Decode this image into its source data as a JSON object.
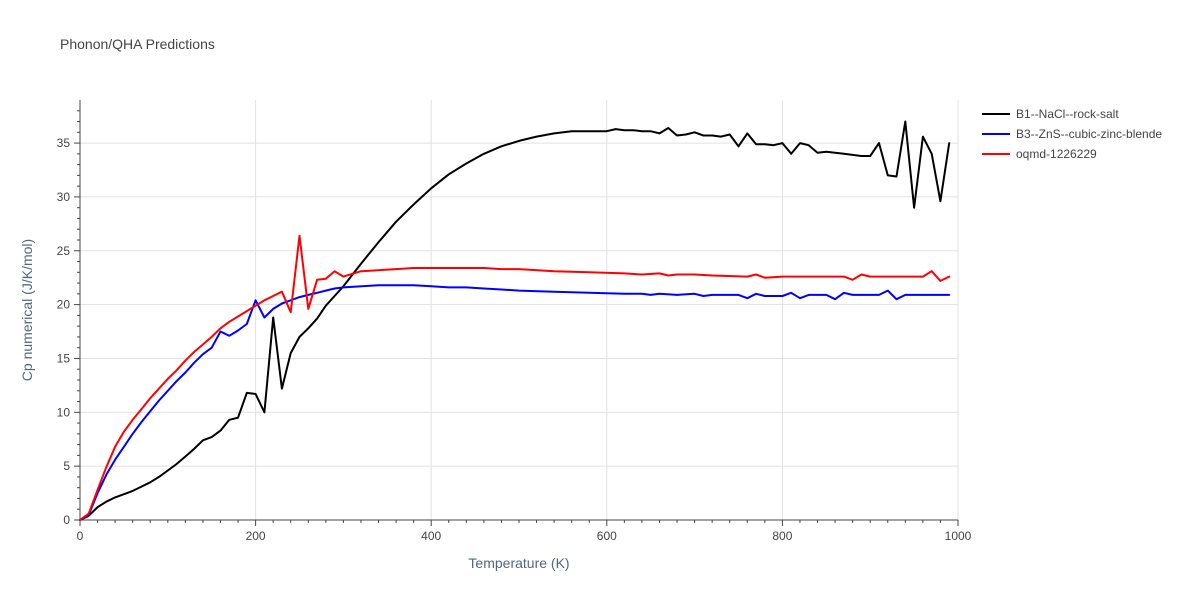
{
  "chart_data": {
    "type": "line",
    "title": "Phonon/QHA Predictions",
    "xlabel": "Temperature (K)",
    "ylabel": "Cp numerical (J/K/mol)",
    "xlim": [
      0,
      1000
    ],
    "ylim": [
      0,
      39
    ],
    "xticks": [
      0,
      200,
      400,
      600,
      800,
      1000
    ],
    "yticks": [
      0,
      5,
      10,
      15,
      20,
      25,
      30,
      35
    ],
    "grid": true,
    "legend_position": "top-right",
    "series": [
      {
        "name": "B1--NaCl--rock-salt",
        "color": "#000000",
        "x": [
          0,
          10,
          20,
          30,
          40,
          50,
          60,
          70,
          80,
          90,
          100,
          110,
          120,
          130,
          140,
          150,
          160,
          170,
          180,
          190,
          200,
          210,
          220,
          230,
          240,
          250,
          260,
          270,
          280,
          290,
          300,
          320,
          340,
          360,
          380,
          400,
          420,
          440,
          460,
          480,
          500,
          520,
          540,
          560,
          580,
          600,
          610,
          620,
          630,
          640,
          650,
          660,
          670,
          680,
          690,
          700,
          710,
          720,
          730,
          740,
          750,
          760,
          770,
          780,
          790,
          800,
          810,
          820,
          830,
          840,
          850,
          860,
          870,
          880,
          890,
          900,
          910,
          920,
          930,
          940,
          950,
          960,
          970,
          980,
          990
        ],
        "y": [
          0,
          0.4,
          1.2,
          1.7,
          2.1,
          2.4,
          2.7,
          3.1,
          3.5,
          4.0,
          4.6,
          5.2,
          5.9,
          6.6,
          7.4,
          7.7,
          8.3,
          9.3,
          9.5,
          11.8,
          11.7,
          10.0,
          18.8,
          12.2,
          15.5,
          17.0,
          17.8,
          18.7,
          19.9,
          20.8,
          21.7,
          23.8,
          25.8,
          27.7,
          29.3,
          30.8,
          32.1,
          33.1,
          34.0,
          34.7,
          35.2,
          35.6,
          35.9,
          36.1,
          36.1,
          36.1,
          36.3,
          36.2,
          36.2,
          36.1,
          36.1,
          35.9,
          36.4,
          35.7,
          35.8,
          36.0,
          35.7,
          35.7,
          35.6,
          35.8,
          34.7,
          35.9,
          34.9,
          34.9,
          34.8,
          35.0,
          34.0,
          35.0,
          34.8,
          34.1,
          34.2,
          34.1,
          34.0,
          33.9,
          33.8,
          33.8,
          35.0,
          32.0,
          31.9,
          37.0,
          29.0,
          35.6,
          34.0,
          29.6,
          35.0
        ]
      },
      {
        "name": "B3--ZnS--cubic-zinc-blende",
        "color": "#0000ff",
        "x": [
          0,
          10,
          20,
          30,
          40,
          50,
          60,
          70,
          80,
          90,
          100,
          110,
          120,
          130,
          140,
          150,
          160,
          170,
          180,
          190,
          200,
          210,
          220,
          230,
          240,
          250,
          260,
          270,
          280,
          290,
          300,
          340,
          380,
          400,
          420,
          440,
          460,
          480,
          500,
          540,
          580,
          620,
          640,
          650,
          660,
          680,
          700,
          710,
          720,
          740,
          750,
          760,
          770,
          780,
          800,
          810,
          820,
          830,
          850,
          860,
          870,
          880,
          910,
          920,
          930,
          940,
          960,
          990
        ],
        "y": [
          0,
          0.5,
          2.5,
          4.2,
          5.6,
          6.8,
          8.0,
          9.1,
          10.1,
          11.1,
          12.0,
          12.9,
          13.7,
          14.6,
          15.4,
          16.0,
          17.5,
          17.1,
          17.6,
          18.2,
          20.4,
          18.8,
          19.6,
          20.1,
          20.4,
          20.7,
          20.9,
          21.1,
          21.3,
          21.5,
          21.6,
          21.8,
          21.8,
          21.7,
          21.6,
          21.6,
          21.5,
          21.4,
          21.3,
          21.2,
          21.1,
          21.0,
          21.0,
          20.9,
          21.0,
          20.9,
          21.0,
          20.8,
          20.9,
          20.9,
          20.9,
          20.6,
          21.0,
          20.8,
          20.8,
          21.1,
          20.6,
          20.9,
          20.9,
          20.5,
          21.1,
          20.9,
          20.9,
          21.3,
          20.5,
          20.9,
          20.9,
          20.9
        ]
      },
      {
        "name": "oqmd-1226229",
        "color": "#ff0000",
        "x": [
          0,
          10,
          20,
          30,
          40,
          50,
          60,
          70,
          80,
          90,
          100,
          110,
          120,
          130,
          140,
          150,
          160,
          170,
          180,
          190,
          200,
          210,
          220,
          230,
          240,
          250,
          260,
          270,
          280,
          290,
          300,
          320,
          340,
          360,
          380,
          400,
          420,
          440,
          460,
          480,
          500,
          540,
          580,
          620,
          640,
          660,
          670,
          680,
          700,
          720,
          760,
          770,
          780,
          800,
          840,
          860,
          870,
          880,
          890,
          900,
          960,
          970,
          980,
          990
        ],
        "y": [
          0,
          0.6,
          2.8,
          4.9,
          6.8,
          8.2,
          9.3,
          10.3,
          11.3,
          12.2,
          13.1,
          13.9,
          14.8,
          15.6,
          16.3,
          17.0,
          17.8,
          18.4,
          18.9,
          19.4,
          19.9,
          20.4,
          20.8,
          21.2,
          19.3,
          26.4,
          19.6,
          22.3,
          22.4,
          23.1,
          22.6,
          23.1,
          23.2,
          23.3,
          23.4,
          23.4,
          23.4,
          23.4,
          23.4,
          23.3,
          23.3,
          23.1,
          23.0,
          22.9,
          22.8,
          22.9,
          22.7,
          22.8,
          22.8,
          22.7,
          22.6,
          22.8,
          22.5,
          22.6,
          22.6,
          22.6,
          22.6,
          22.3,
          22.8,
          22.6,
          22.6,
          23.1,
          22.2,
          22.6
        ]
      }
    ]
  }
}
